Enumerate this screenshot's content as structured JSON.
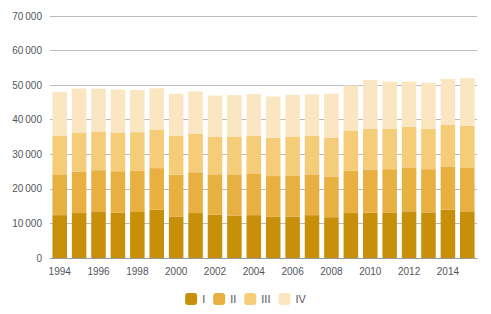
{
  "chart_data": {
    "type": "bar",
    "stacked": true,
    "grid": true,
    "legend": "bottom",
    "categories": [
      "1994",
      null,
      "1996",
      null,
      "1998",
      null,
      "2000",
      null,
      "2002",
      null,
      "2004",
      null,
      "2006",
      null,
      "2008",
      null,
      "2010",
      null,
      "2012",
      null,
      "2014",
      null
    ],
    "series": [
      {
        "name": "I",
        "color": "#c8900a",
        "values": [
          12400,
          13000,
          13500,
          13100,
          13300,
          14000,
          11900,
          13000,
          12500,
          12300,
          12400,
          11900,
          12000,
          12400,
          11800,
          13000,
          13100,
          13200,
          13500,
          13200,
          14000,
          13500
        ]
      },
      {
        "name": "II",
        "color": "#e8b040",
        "values": [
          11800,
          12000,
          11900,
          12000,
          11900,
          12000,
          12200,
          11800,
          11700,
          11900,
          11900,
          11800,
          11900,
          11800,
          11800,
          12200,
          12500,
          12500,
          12700,
          12500,
          12500,
          12700
        ]
      },
      {
        "name": "III",
        "color": "#f5cc78",
        "values": [
          11200,
          11300,
          11200,
          11200,
          11200,
          11200,
          11300,
          11200,
          10800,
          10800,
          11100,
          11100,
          11100,
          11100,
          11200,
          11700,
          11700,
          11700,
          11800,
          11700,
          12100,
          12100
        ]
      },
      {
        "name": "IV",
        "color": "#fae6c0",
        "values": [
          12600,
          12700,
          12400,
          12400,
          12200,
          11900,
          12100,
          12200,
          12000,
          12100,
          12000,
          11900,
          12200,
          12000,
          12700,
          13000,
          14200,
          13600,
          13000,
          13300,
          13200,
          13700
        ]
      }
    ],
    "ylim": [
      0,
      70000
    ],
    "yticks": [
      0,
      {
        "value": 10000,
        "label": "10 000"
      },
      {
        "value": 20000,
        "label": "20 000"
      },
      {
        "value": 30000,
        "label": "30 000"
      },
      {
        "value": 40000,
        "label": "40 000"
      },
      {
        "value": 50000,
        "label": "50 000"
      },
      {
        "value": 60000,
        "label": "60 000"
      },
      {
        "value": 70000,
        "label": "70 000"
      }
    ]
  }
}
